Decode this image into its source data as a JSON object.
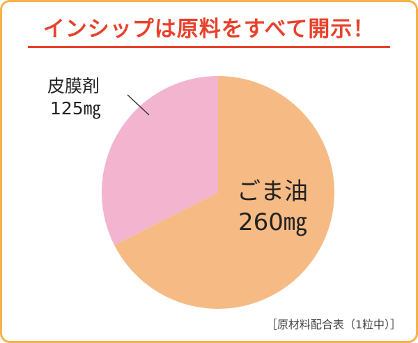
{
  "header": {
    "title": "インシップは原料をすべて開示！",
    "title_color": "#e8412b",
    "frame_color": "#f5b24a"
  },
  "chart_data": {
    "type": "pie",
    "slices": [
      {
        "label": "ごま油",
        "value": 260,
        "value_label": "260㎎",
        "color": "#f6bb85"
      },
      {
        "label": "皮膜剤",
        "value": 125,
        "value_label": "125㎎",
        "color": "#f3b4d0"
      }
    ],
    "unit": "㎎",
    "legend": "none"
  },
  "footnote": "［原材料配合表（1粒中）］"
}
